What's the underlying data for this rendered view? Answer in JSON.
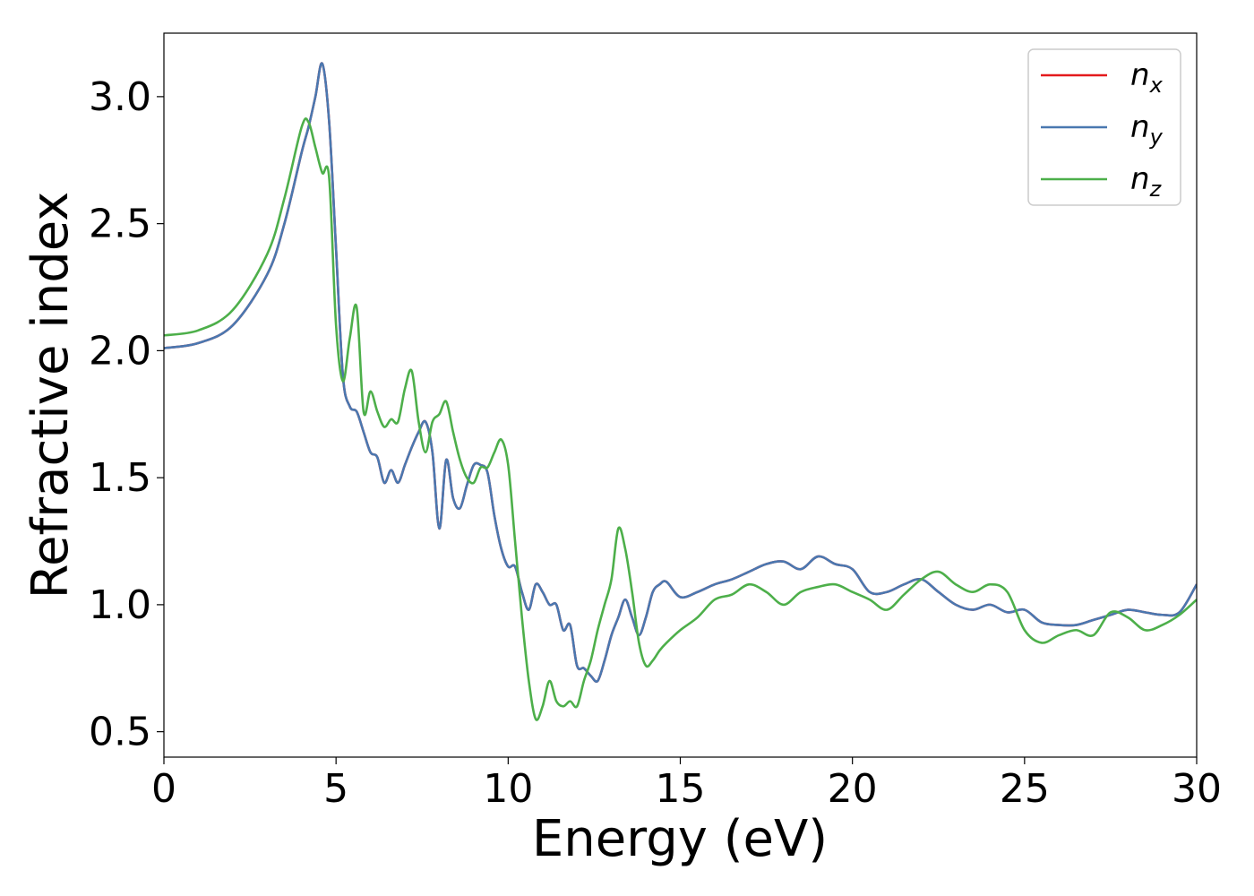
{
  "chart_data": {
    "type": "line",
    "xlabel": "Energy (eV)",
    "ylabel": "Refractive index",
    "xlim": [
      0,
      30
    ],
    "ylim": [
      0.4,
      3.25
    ],
    "xticks": [
      "0",
      "5",
      "10",
      "15",
      "20",
      "25",
      "30"
    ],
    "yticks": [
      "0.5",
      "1.0",
      "1.5",
      "2.0",
      "2.5",
      "3.0"
    ],
    "grid": false,
    "legend_position": "top-right",
    "series": [
      {
        "name": "n_x",
        "label_base": "n",
        "label_sub": "x",
        "color": "#e41a1c",
        "x": [
          0,
          1,
          2,
          3,
          3.5,
          4,
          4.2,
          4.4,
          4.6,
          4.8,
          5,
          5.2,
          5.4,
          5.6,
          5.8,
          6,
          6.2,
          6.4,
          6.6,
          6.8,
          7,
          7.2,
          7.4,
          7.6,
          7.8,
          8,
          8.2,
          8.4,
          8.6,
          8.8,
          9,
          9.2,
          9.4,
          9.6,
          9.8,
          10,
          10.2,
          10.4,
          10.6,
          10.8,
          11,
          11.2,
          11.4,
          11.6,
          11.8,
          12,
          12.2,
          12.4,
          12.6,
          12.8,
          13,
          13.2,
          13.4,
          13.6,
          13.8,
          14,
          14.2,
          14.4,
          14.6,
          15,
          15.5,
          16,
          16.5,
          17,
          17.5,
          18,
          18.5,
          19,
          19.5,
          20,
          20.5,
          21,
          21.5,
          22,
          22.5,
          23,
          23.5,
          24,
          24.5,
          25,
          25.5,
          26,
          26.5,
          27,
          27.5,
          28,
          28.5,
          29,
          29.5,
          30
        ],
        "y": [
          2.01,
          2.03,
          2.1,
          2.3,
          2.5,
          2.78,
          2.88,
          3.0,
          3.13,
          2.9,
          2.4,
          1.9,
          1.78,
          1.76,
          1.68,
          1.6,
          1.58,
          1.48,
          1.53,
          1.48,
          1.55,
          1.62,
          1.68,
          1.72,
          1.6,
          1.3,
          1.57,
          1.42,
          1.38,
          1.47,
          1.55,
          1.55,
          1.52,
          1.35,
          1.22,
          1.15,
          1.15,
          1.05,
          0.98,
          1.08,
          1.05,
          1.0,
          1.0,
          0.9,
          0.92,
          0.76,
          0.75,
          0.72,
          0.7,
          0.78,
          0.88,
          0.95,
          1.02,
          0.95,
          0.88,
          0.95,
          1.05,
          1.08,
          1.09,
          1.03,
          1.05,
          1.08,
          1.1,
          1.13,
          1.16,
          1.17,
          1.14,
          1.19,
          1.16,
          1.14,
          1.05,
          1.05,
          1.08,
          1.1,
          1.05,
          1.0,
          0.98,
          1.0,
          0.97,
          0.98,
          0.93,
          0.92,
          0.92,
          0.94,
          0.96,
          0.98,
          0.97,
          0.96,
          0.97,
          1.08
        ]
      },
      {
        "name": "n_y",
        "label_base": "n",
        "label_sub": "y",
        "color": "#4a78b0",
        "x": [
          0,
          1,
          2,
          3,
          3.5,
          4,
          4.2,
          4.4,
          4.6,
          4.8,
          5,
          5.2,
          5.4,
          5.6,
          5.8,
          6,
          6.2,
          6.4,
          6.6,
          6.8,
          7,
          7.2,
          7.4,
          7.6,
          7.8,
          8,
          8.2,
          8.4,
          8.6,
          8.8,
          9,
          9.2,
          9.4,
          9.6,
          9.8,
          10,
          10.2,
          10.4,
          10.6,
          10.8,
          11,
          11.2,
          11.4,
          11.6,
          11.8,
          12,
          12.2,
          12.4,
          12.6,
          12.8,
          13,
          13.2,
          13.4,
          13.6,
          13.8,
          14,
          14.2,
          14.4,
          14.6,
          15,
          15.5,
          16,
          16.5,
          17,
          17.5,
          18,
          18.5,
          19,
          19.5,
          20,
          20.5,
          21,
          21.5,
          22,
          22.5,
          23,
          23.5,
          24,
          24.5,
          25,
          25.5,
          26,
          26.5,
          27,
          27.5,
          28,
          28.5,
          29,
          29.5,
          30
        ],
        "y": [
          2.01,
          2.03,
          2.1,
          2.3,
          2.5,
          2.78,
          2.88,
          3.0,
          3.13,
          2.9,
          2.4,
          1.9,
          1.78,
          1.76,
          1.68,
          1.6,
          1.58,
          1.48,
          1.53,
          1.48,
          1.55,
          1.62,
          1.68,
          1.72,
          1.6,
          1.3,
          1.57,
          1.42,
          1.38,
          1.47,
          1.55,
          1.55,
          1.52,
          1.35,
          1.22,
          1.15,
          1.15,
          1.05,
          0.98,
          1.08,
          1.05,
          1.0,
          1.0,
          0.9,
          0.92,
          0.76,
          0.75,
          0.72,
          0.7,
          0.78,
          0.88,
          0.95,
          1.02,
          0.95,
          0.88,
          0.95,
          1.05,
          1.08,
          1.09,
          1.03,
          1.05,
          1.08,
          1.1,
          1.13,
          1.16,
          1.17,
          1.14,
          1.19,
          1.16,
          1.14,
          1.05,
          1.05,
          1.08,
          1.1,
          1.05,
          1.0,
          0.98,
          1.0,
          0.97,
          0.98,
          0.93,
          0.92,
          0.92,
          0.94,
          0.96,
          0.98,
          0.97,
          0.96,
          0.97,
          1.08
        ]
      },
      {
        "name": "n_z",
        "label_base": "n",
        "label_sub": "z",
        "color": "#4daf4a",
        "x": [
          0,
          1,
          2,
          3,
          3.5,
          4,
          4.2,
          4.4,
          4.6,
          4.8,
          5,
          5.2,
          5.4,
          5.6,
          5.8,
          6,
          6.2,
          6.4,
          6.6,
          6.8,
          7,
          7.2,
          7.4,
          7.6,
          7.8,
          8,
          8.2,
          8.4,
          8.6,
          8.8,
          9,
          9.2,
          9.4,
          9.6,
          9.8,
          10,
          10.2,
          10.4,
          10.6,
          10.8,
          11,
          11.2,
          11.4,
          11.6,
          11.8,
          12,
          12.2,
          12.4,
          12.6,
          12.8,
          13,
          13.2,
          13.4,
          13.6,
          13.8,
          14,
          14.2,
          14.4,
          14.6,
          15,
          15.5,
          16,
          16.5,
          17,
          17.5,
          18,
          18.5,
          19,
          19.5,
          20,
          20.5,
          21,
          21.5,
          22,
          22.5,
          23,
          23.5,
          24,
          24.5,
          25,
          25.5,
          26,
          26.5,
          27,
          27.5,
          28,
          28.5,
          29,
          29.5,
          30
        ],
        "y": [
          2.06,
          2.08,
          2.16,
          2.38,
          2.6,
          2.88,
          2.9,
          2.8,
          2.7,
          2.68,
          2.1,
          1.88,
          2.05,
          2.17,
          1.76,
          1.84,
          1.76,
          1.7,
          1.73,
          1.72,
          1.85,
          1.92,
          1.72,
          1.6,
          1.72,
          1.75,
          1.8,
          1.68,
          1.57,
          1.5,
          1.48,
          1.54,
          1.54,
          1.6,
          1.65,
          1.55,
          1.25,
          0.95,
          0.7,
          0.55,
          0.6,
          0.7,
          0.62,
          0.6,
          0.62,
          0.6,
          0.7,
          0.78,
          0.9,
          1.0,
          1.1,
          1.3,
          1.22,
          1.05,
          0.85,
          0.76,
          0.78,
          0.82,
          0.85,
          0.9,
          0.95,
          1.02,
          1.04,
          1.08,
          1.05,
          1.0,
          1.05,
          1.07,
          1.08,
          1.05,
          1.02,
          0.98,
          1.04,
          1.1,
          1.13,
          1.08,
          1.05,
          1.08,
          1.05,
          0.9,
          0.85,
          0.88,
          0.9,
          0.88,
          0.97,
          0.95,
          0.9,
          0.92,
          0.96,
          1.02
        ]
      }
    ]
  }
}
